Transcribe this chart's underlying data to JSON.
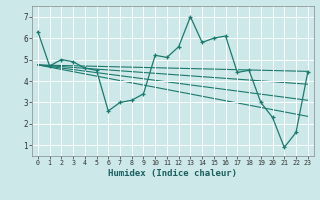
{
  "xlabel": "Humidex (Indice chaleur)",
  "ylabel": "",
  "background_color": "#cce8e8",
  "grid_color": "#ffffff",
  "line_color": "#1a7a6e",
  "xlim": [
    -0.5,
    23.5
  ],
  "ylim": [
    0.5,
    7.5
  ],
  "xticks": [
    0,
    1,
    2,
    3,
    4,
    5,
    6,
    7,
    8,
    9,
    10,
    11,
    12,
    13,
    14,
    15,
    16,
    17,
    18,
    19,
    20,
    21,
    22,
    23
  ],
  "yticks": [
    1,
    2,
    3,
    4,
    5,
    6,
    7
  ],
  "data_line": {
    "x": [
      0,
      1,
      2,
      3,
      4,
      5,
      6,
      7,
      8,
      9,
      10,
      11,
      12,
      13,
      14,
      15,
      16,
      17,
      18,
      19,
      20,
      21,
      22,
      23
    ],
    "y": [
      6.3,
      4.7,
      5.0,
      4.9,
      4.6,
      4.5,
      2.6,
      3.0,
      3.1,
      3.4,
      5.2,
      5.1,
      5.6,
      7.0,
      5.8,
      6.0,
      6.1,
      4.4,
      4.5,
      3.0,
      2.3,
      0.9,
      1.6,
      4.4
    ]
  },
  "trend_lines": [
    {
      "x": [
        0,
        23
      ],
      "y": [
        4.75,
        4.45
      ]
    },
    {
      "x": [
        0,
        23
      ],
      "y": [
        4.75,
        3.85
      ]
    },
    {
      "x": [
        0,
        23
      ],
      "y": [
        4.75,
        3.1
      ]
    },
    {
      "x": [
        0,
        23
      ],
      "y": [
        4.75,
        2.35
      ]
    }
  ]
}
